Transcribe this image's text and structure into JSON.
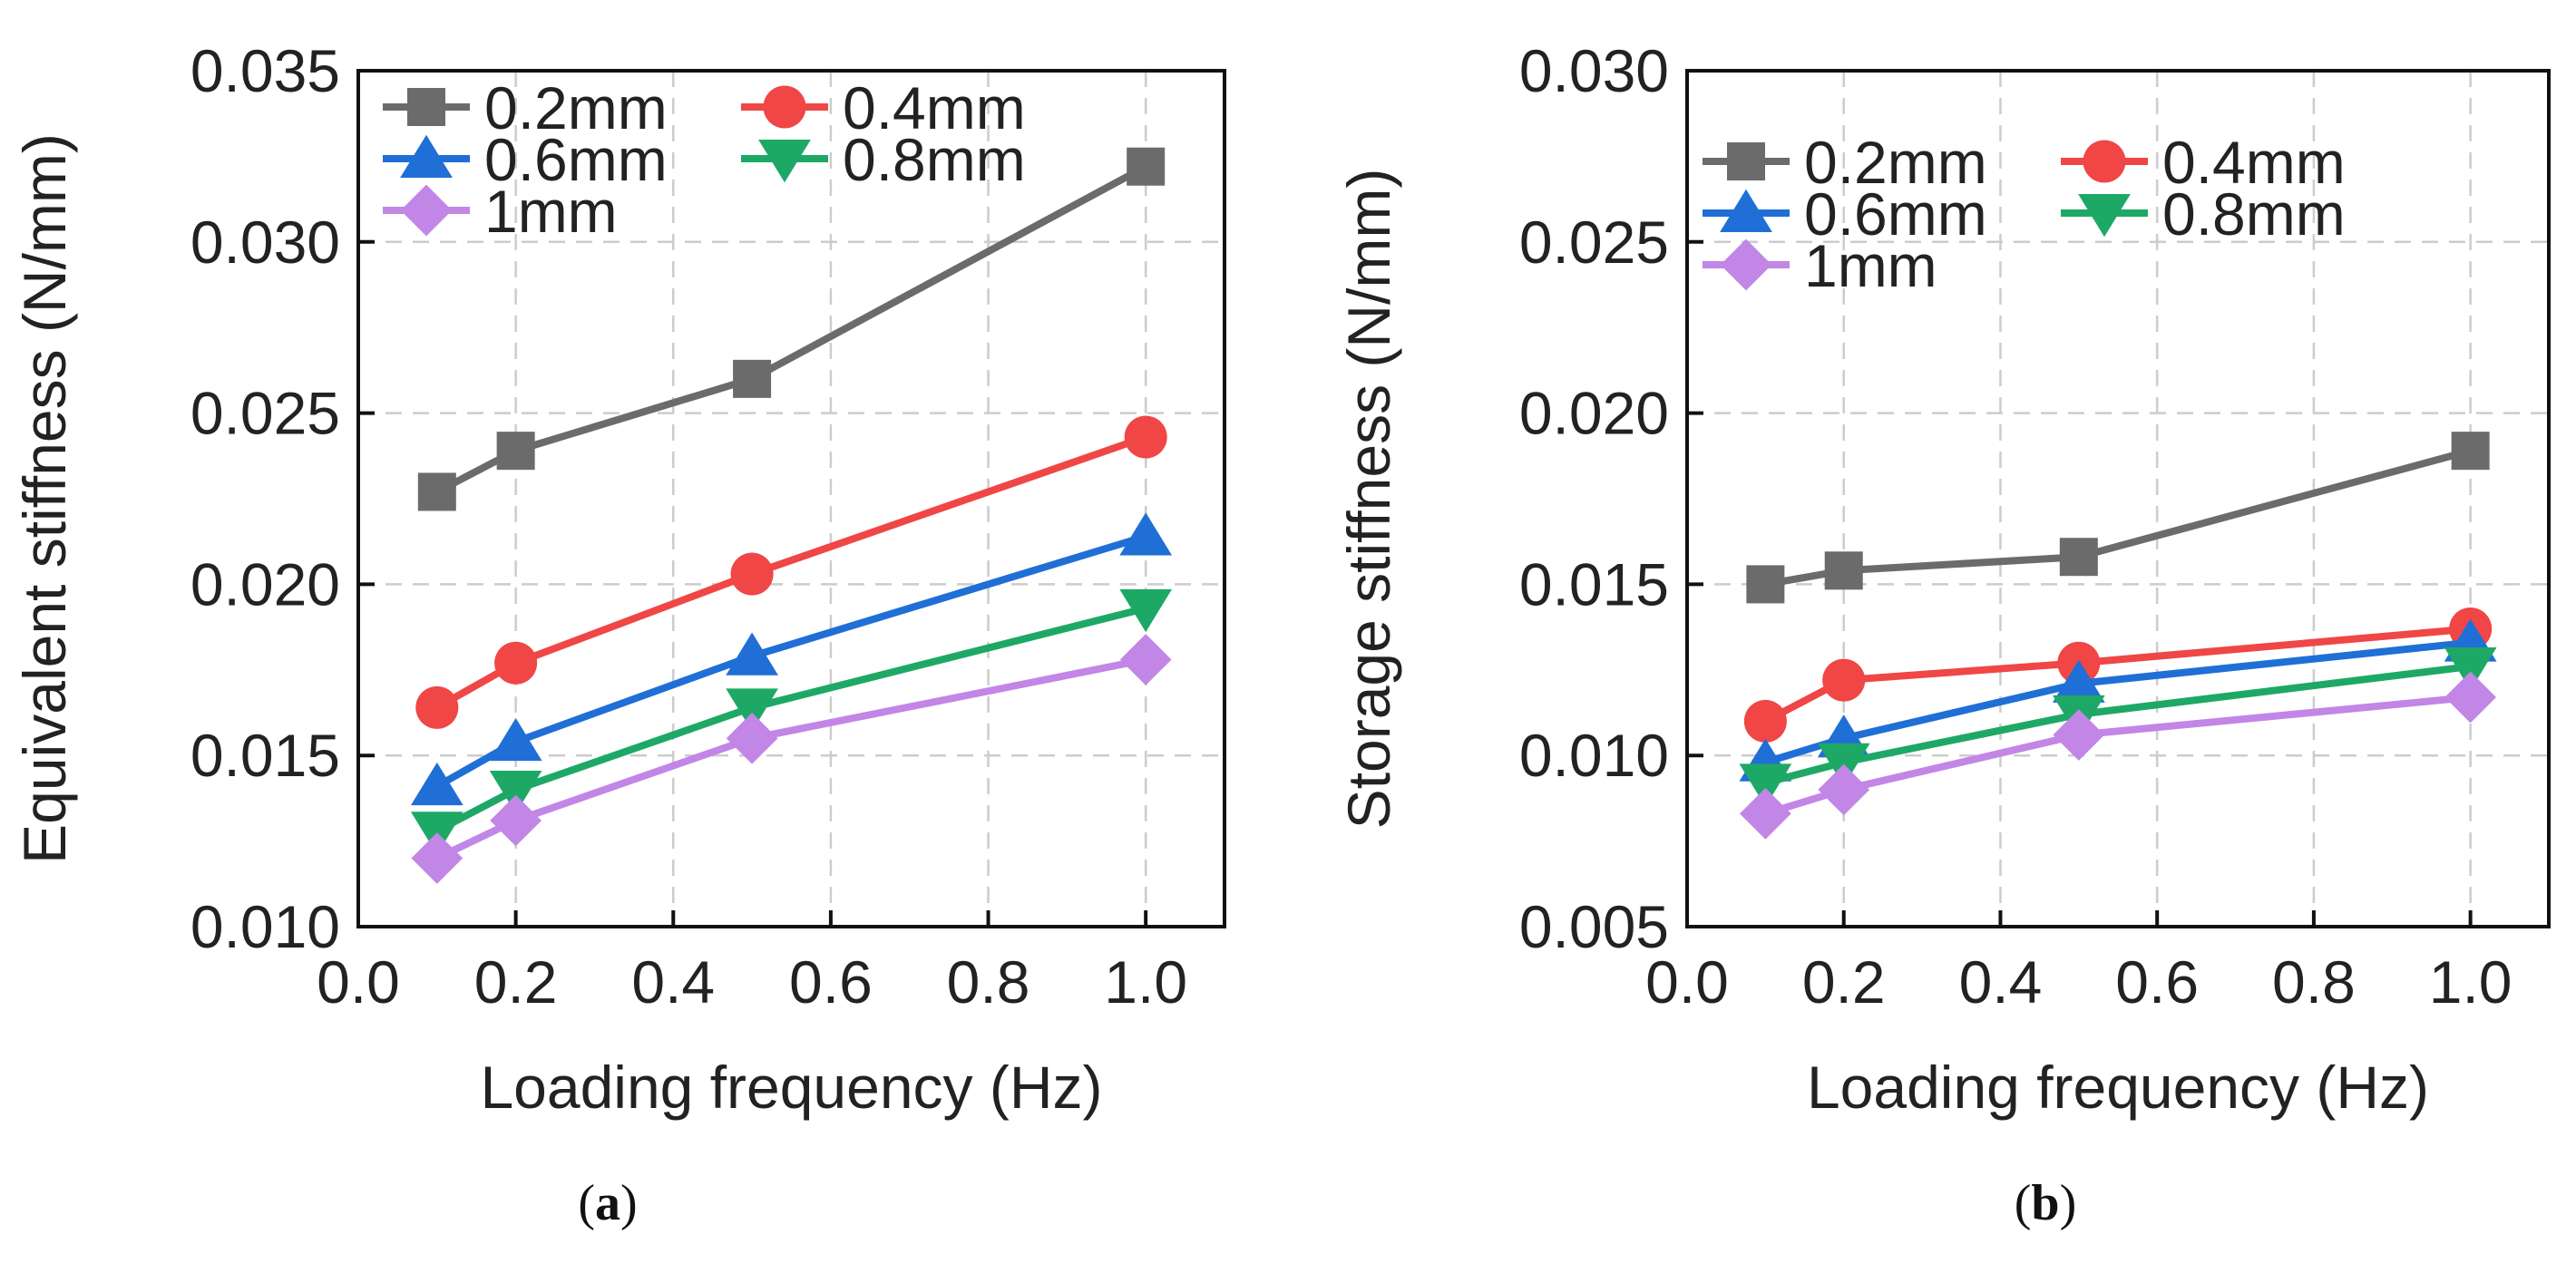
{
  "chart_data": [
    {
      "type": "line",
      "panel_label": "a",
      "xlabel": "Loading frequency (Hz)",
      "ylabel": "Equivalent stiffness (N/mm)",
      "xlim": [
        0.0,
        1.1
      ],
      "ylim": [
        0.01,
        0.035
      ],
      "xticks": [
        "0.0",
        "0.2",
        "0.4",
        "0.6",
        "0.8",
        "1.0"
      ],
      "yticks": [
        "0.010",
        "0.015",
        "0.020",
        "0.025",
        "0.030",
        "0.035"
      ],
      "grid": true,
      "legend_position": "top-left",
      "x": [
        0.1,
        0.2,
        0.5,
        1.0
      ],
      "series": [
        {
          "name": "0.2mm",
          "color": "#6b6b6b",
          "marker": "square",
          "values": [
            0.0227,
            0.0239,
            0.026,
            0.0322
          ]
        },
        {
          "name": "0.4mm",
          "color": "#f04646",
          "marker": "circle",
          "values": [
            0.0164,
            0.0177,
            0.0203,
            0.0243
          ]
        },
        {
          "name": "0.6mm",
          "color": "#1f6fd6",
          "marker": "triangle-up",
          "values": [
            0.0141,
            0.0154,
            0.0179,
            0.0214
          ]
        },
        {
          "name": "0.8mm",
          "color": "#1ea866",
          "marker": "triangle-down",
          "values": [
            0.0128,
            0.014,
            0.0164,
            0.0193
          ]
        },
        {
          "name": "1mm",
          "color": "#c286e6",
          "marker": "diamond",
          "values": [
            0.012,
            0.0131,
            0.0155,
            0.0178
          ]
        }
      ]
    },
    {
      "type": "line",
      "panel_label": "b",
      "xlabel": "Loading frequency (Hz)",
      "ylabel": "Storage stiffness (N/mm)",
      "xlim": [
        0.0,
        1.1
      ],
      "ylim": [
        0.005,
        0.03
      ],
      "xticks": [
        "0.0",
        "0.2",
        "0.4",
        "0.6",
        "0.8",
        "1.0"
      ],
      "yticks": [
        "0.005",
        "0.010",
        "0.015",
        "0.020",
        "0.025",
        "0.030"
      ],
      "grid": true,
      "legend_position": "top-left",
      "x": [
        0.1,
        0.2,
        0.5,
        1.0
      ],
      "series": [
        {
          "name": "0.2mm",
          "color": "#6b6b6b",
          "marker": "square",
          "values": [
            0.015,
            0.0154,
            0.0158,
            0.0189
          ]
        },
        {
          "name": "0.4mm",
          "color": "#f04646",
          "marker": "circle",
          "values": [
            0.011,
            0.0122,
            0.0127,
            0.0137
          ]
        },
        {
          "name": "0.6mm",
          "color": "#1f6fd6",
          "marker": "triangle-up",
          "values": [
            0.0098,
            0.0105,
            0.0121,
            0.0133
          ]
        },
        {
          "name": "0.8mm",
          "color": "#1ea866",
          "marker": "triangle-down",
          "values": [
            0.0092,
            0.0098,
            0.0112,
            0.0126
          ]
        },
        {
          "name": "1mm",
          "color": "#c286e6",
          "marker": "diamond",
          "values": [
            0.0083,
            0.009,
            0.0106,
            0.0117
          ]
        }
      ]
    }
  ]
}
